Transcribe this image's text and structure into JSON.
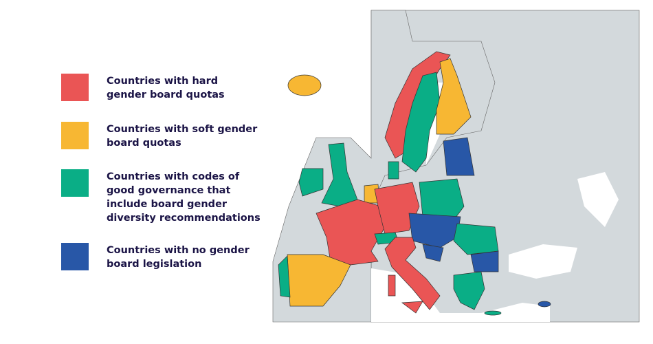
{
  "legend": {
    "items": [
      {
        "color": "#ea5555",
        "lines": [
          "Countries with hard",
          "gender board quotas"
        ]
      },
      {
        "color": "#f7b733",
        "lines": [
          "Countries with soft gender",
          "board quotas"
        ]
      },
      {
        "color": "#0aae86",
        "lines": [
          "Countries with codes of",
          "good governance that",
          "include board gender",
          "diversity recommendations"
        ]
      },
      {
        "color": "#2857a7",
        "lines": [
          "Countries with no gender",
          "board legislation"
        ]
      }
    ]
  }
}
